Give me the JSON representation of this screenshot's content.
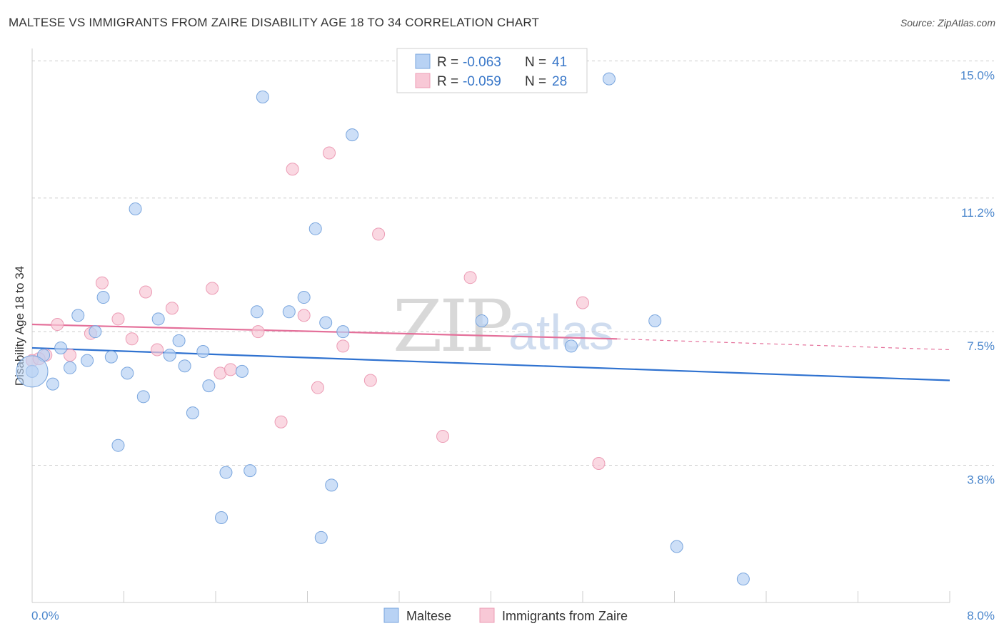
{
  "title": "MALTESE VS IMMIGRANTS FROM ZAIRE DISABILITY AGE 18 TO 34 CORRELATION CHART",
  "source": "Source: ZipAtlas.com",
  "watermark": {
    "zip": "ZIP",
    "atlas": "atlas"
  },
  "legend": {
    "rows": [
      {
        "r_label": "R = ",
        "r_value": "-0.063",
        "n_label": "N = ",
        "n_value": "41"
      },
      {
        "r_label": "R = ",
        "r_value": "-0.059",
        "n_label": "N = ",
        "n_value": "28"
      }
    ]
  },
  "bottom_legend": {
    "maltese": "Maltese",
    "zaire": "Immigrants from Zaire"
  },
  "colors": {
    "maltese_fill": "#b8d2f4",
    "maltese_stroke": "#7aa6de",
    "maltese_line": "#2f72d0",
    "zaire_fill": "#f8c8d6",
    "zaire_stroke": "#ec9cb5",
    "zaire_line": "#e4709a",
    "grid": "#cccccc",
    "tick_text": "#4a86cc"
  },
  "chart_data": {
    "type": "scatter",
    "title": "MALTESE VS IMMIGRANTS FROM ZAIRE DISABILITY AGE 18 TO 34 CORRELATION CHART",
    "xlabel": "",
    "ylabel": "Disability Age 18 to 34",
    "xlim": [
      0,
      8.0
    ],
    "ylim": [
      0,
      15.5
    ],
    "x_tick_labels": [
      "0.0%",
      "8.0%"
    ],
    "y_ticks": [
      3.8,
      7.5,
      11.2,
      15.0
    ],
    "y_tick_labels": [
      "3.8%",
      "7.5%",
      "11.2%",
      "15.0%"
    ],
    "series": [
      {
        "name": "Maltese",
        "R": -0.063,
        "N": 41,
        "trend": {
          "x0": 0.0,
          "y0": 7.05,
          "x1": 8.0,
          "y1": 6.15
        },
        "points": [
          [
            0.0,
            6.4
          ],
          [
            0.1,
            6.85
          ],
          [
            0.18,
            6.05
          ],
          [
            0.25,
            7.05
          ],
          [
            0.33,
            6.5
          ],
          [
            0.4,
            7.95
          ],
          [
            0.48,
            6.7
          ],
          [
            0.55,
            7.5
          ],
          [
            0.62,
            8.45
          ],
          [
            0.69,
            6.8
          ],
          [
            0.75,
            4.35
          ],
          [
            0.83,
            6.35
          ],
          [
            0.9,
            10.9
          ],
          [
            0.97,
            5.7
          ],
          [
            1.1,
            7.85
          ],
          [
            1.2,
            6.85
          ],
          [
            1.28,
            7.25
          ],
          [
            1.33,
            6.55
          ],
          [
            1.4,
            5.25
          ],
          [
            1.49,
            6.95
          ],
          [
            1.54,
            6.0
          ],
          [
            1.65,
            2.35
          ],
          [
            1.69,
            3.6
          ],
          [
            1.83,
            6.4
          ],
          [
            1.9,
            3.65
          ],
          [
            1.96,
            8.05
          ],
          [
            2.01,
            14.0
          ],
          [
            2.24,
            8.05
          ],
          [
            2.37,
            8.45
          ],
          [
            2.47,
            10.35
          ],
          [
            2.52,
            1.8
          ],
          [
            2.56,
            7.75
          ],
          [
            2.61,
            3.25
          ],
          [
            2.71,
            7.5
          ],
          [
            2.79,
            12.95
          ],
          [
            3.92,
            7.8
          ],
          [
            4.7,
            7.1
          ],
          [
            5.03,
            14.5
          ],
          [
            5.43,
            7.8
          ],
          [
            5.62,
            1.55
          ],
          [
            6.2,
            0.65
          ]
        ]
      },
      {
        "name": "Immigrants from Zaire",
        "R": -0.059,
        "N": 28,
        "trend": {
          "x0": 0.0,
          "y0": 7.7,
          "x1": 5.1,
          "y1": 7.3
        },
        "trend_dashed": {
          "x0": 5.1,
          "y0": 7.3,
          "x1": 8.0,
          "y1": 7.0
        },
        "points": [
          [
            0.0,
            6.7
          ],
          [
            0.12,
            6.85
          ],
          [
            0.22,
            7.7
          ],
          [
            0.33,
            6.85
          ],
          [
            0.51,
            7.45
          ],
          [
            0.61,
            8.85
          ],
          [
            0.75,
            7.85
          ],
          [
            0.87,
            7.3
          ],
          [
            0.99,
            8.6
          ],
          [
            1.09,
            7.0
          ],
          [
            1.22,
            8.15
          ],
          [
            1.57,
            8.7
          ],
          [
            1.64,
            6.35
          ],
          [
            1.73,
            6.45
          ],
          [
            1.97,
            7.5
          ],
          [
            2.17,
            5.0
          ],
          [
            2.27,
            12.0
          ],
          [
            2.37,
            7.95
          ],
          [
            2.49,
            5.95
          ],
          [
            2.59,
            12.45
          ],
          [
            2.71,
            7.1
          ],
          [
            2.95,
            6.15
          ],
          [
            3.02,
            10.2
          ],
          [
            3.58,
            4.6
          ],
          [
            3.82,
            9.0
          ],
          [
            4.8,
            8.3
          ],
          [
            4.94,
            3.85
          ],
          [
            0.06,
            6.75
          ]
        ]
      }
    ]
  }
}
